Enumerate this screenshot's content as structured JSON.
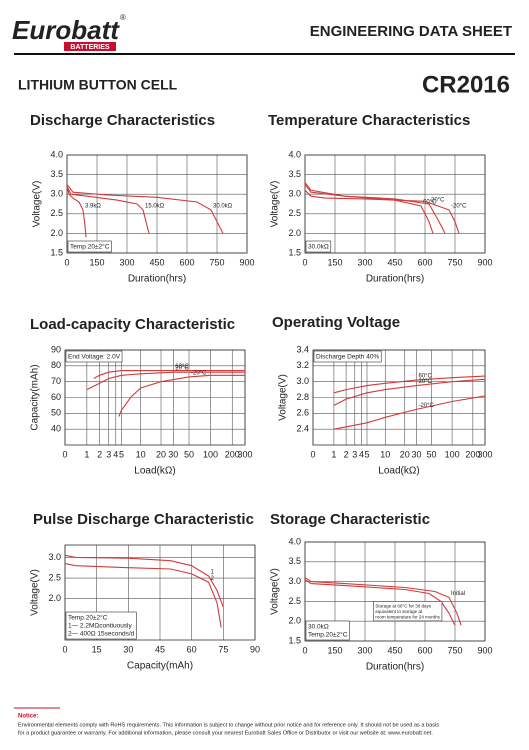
{
  "header": {
    "brand": "Eurobatt",
    "brand_mark": "®",
    "brand_sub": "BATTERIES",
    "doc_title": "ENGINEERING DATA SHEET",
    "product": "LITHIUM BUTTON CELL",
    "model": "CR2016"
  },
  "chart_data": [
    {
      "type": "line",
      "title": "Discharge Characteristics",
      "xlabel": "Duration(hrs)",
      "ylabel": "Voltage(V)",
      "xlim": [
        0,
        900
      ],
      "ylim": [
        1.5,
        4.0
      ],
      "xticks": [
        0,
        150,
        300,
        450,
        600,
        750,
        900
      ],
      "yticks": [
        1.5,
        {
          "value": 2,
          "label": "2.0"
        },
        2.5,
        {
          "value": 3,
          "label": "3.0"
        },
        3.5,
        {
          "value": 4,
          "label": "4.0"
        }
      ],
      "grid": true,
      "notes": [
        [
          "Temp.20±2°C"
        ]
      ],
      "series": [
        {
          "name": "3.9kΩ",
          "color": "#d33a3a",
          "x": [
            0,
            10,
            30,
            60,
            80,
            90,
            95
          ],
          "values": [
            3.2,
            3.0,
            2.9,
            2.8,
            2.6,
            2.2,
            1.9
          ]
        },
        {
          "name": "15.0kΩ",
          "color": "#d33a3a",
          "x": [
            0,
            20,
            100,
            250,
            350,
            380,
            400,
            410
          ],
          "values": [
            3.2,
            3.0,
            2.95,
            2.85,
            2.75,
            2.6,
            2.2,
            2.0
          ]
        },
        {
          "name": "30.0kΩ",
          "color": "#d33a3a",
          "x": [
            0,
            30,
            200,
            450,
            650,
            720,
            760,
            780
          ],
          "values": [
            3.25,
            3.05,
            2.98,
            2.92,
            2.8,
            2.6,
            2.2,
            2.0
          ]
        }
      ]
    },
    {
      "type": "line",
      "title": "Temperature Characteristics",
      "xlabel": "Duration(hrs)",
      "ylabel": "Voltage(V)",
      "xlim": [
        0,
        900
      ],
      "ylim": [
        1.5,
        4.0
      ],
      "xticks": [
        0,
        150,
        300,
        450,
        600,
        750,
        900
      ],
      "yticks": [
        1.5,
        {
          "value": 2,
          "label": "2.0"
        },
        2.5,
        {
          "value": 3,
          "label": "3.0"
        },
        3.5,
        {
          "value": 4,
          "label": "4.0"
        }
      ],
      "grid": true,
      "notes": [
        [
          "30.0kΩ"
        ]
      ],
      "series": [
        {
          "name": "60°C",
          "color": "#d33a3a",
          "x": [
            0,
            30,
            200,
            450,
            580,
            620,
            640
          ],
          "values": [
            3.3,
            3.1,
            2.95,
            2.85,
            2.7,
            2.3,
            2.0
          ]
        },
        {
          "name": "20°C",
          "color": "#d33a3a",
          "x": [
            0,
            30,
            200,
            450,
            620,
            670,
            700
          ],
          "values": [
            3.25,
            3.05,
            2.95,
            2.88,
            2.75,
            2.3,
            2.0
          ]
        },
        {
          "name": "-20°C",
          "color": "#d33a3a",
          "x": [
            0,
            30,
            100,
            300,
            600,
            720,
            750,
            770
          ],
          "values": [
            3.1,
            2.95,
            2.9,
            2.88,
            2.82,
            2.6,
            2.3,
            2.0
          ]
        }
      ]
    },
    {
      "type": "line",
      "title": "Load-capacity Characteristic",
      "xlabel": "Load(kΩ)",
      "ylabel": "Capacity(mAh)",
      "xscale": "log1p",
      "xlim": [
        0,
        300
      ],
      "ylim": [
        30,
        90
      ],
      "xticks": [
        0,
        1,
        2,
        3,
        4,
        5,
        10,
        20,
        30,
        50,
        100,
        200,
        300
      ],
      "yticks": [
        40,
        50,
        60,
        70,
        80,
        90
      ],
      "grid": true,
      "notes": [
        [
          "End Voltage: 2.0V"
        ]
      ],
      "series": [
        {
          "name": "60°C",
          "color": "#d33a3a",
          "x": [
            1.5,
            2,
            3,
            5,
            10,
            30,
            100,
            300
          ],
          "values": [
            72,
            74,
            76,
            77,
            77,
            77,
            77,
            77
          ]
        },
        {
          "name": "20°C",
          "color": "#d33a3a",
          "x": [
            1,
            2,
            3,
            5,
            10,
            30,
            100,
            300
          ],
          "values": [
            65,
            69,
            72,
            74,
            75,
            76,
            76,
            76
          ]
        },
        {
          "name": "-20°C",
          "color": "#d33a3a",
          "x": [
            4.5,
            5,
            7,
            10,
            20,
            50,
            100,
            300
          ],
          "values": [
            48,
            52,
            60,
            66,
            70,
            73,
            74,
            74
          ]
        }
      ]
    },
    {
      "type": "line",
      "title": "Operating Voltage",
      "xlabel": "Load(kΩ)",
      "ylabel": "Voltage(V)",
      "xscale": "log1p",
      "xlim": [
        0,
        300
      ],
      "ylim": [
        2.2,
        3.4
      ],
      "xticks": [
        0,
        1,
        2,
        3,
        4,
        5,
        10,
        20,
        30,
        50,
        100,
        200,
        300
      ],
      "yticks": [
        2.4,
        2.6,
        2.8,
        {
          "value": 3,
          "label": "3.0"
        },
        3.2,
        3.4
      ],
      "grid": true,
      "notes": [
        [
          "Discharge Depth 40%"
        ]
      ],
      "series": [
        {
          "name": "60°C",
          "color": "#d33a3a",
          "x": [
            1,
            2,
            5,
            10,
            30,
            100,
            300
          ],
          "values": [
            2.86,
            2.9,
            2.95,
            2.98,
            3.02,
            3.05,
            3.07
          ]
        },
        {
          "name": "20°C",
          "color": "#d33a3a",
          "x": [
            1,
            2,
            5,
            10,
            30,
            100,
            300
          ],
          "values": [
            2.7,
            2.78,
            2.86,
            2.9,
            2.95,
            3.0,
            3.03
          ]
        },
        {
          "name": "-20°C",
          "color": "#d33a3a",
          "x": [
            1,
            5,
            10,
            30,
            100,
            300
          ],
          "values": [
            2.4,
            2.48,
            2.55,
            2.65,
            2.75,
            2.82
          ]
        }
      ]
    },
    {
      "type": "line",
      "title": "Pulse Discharge Characteristic",
      "xlabel": "Capacity(mAh)",
      "ylabel": "Voltage(V)",
      "xlim": [
        0,
        90
      ],
      "ylim": [
        1.0,
        3.3
      ],
      "xticks": [
        0,
        15,
        30,
        45,
        60,
        75,
        90
      ],
      "yticks": [
        {
          "value": 2,
          "label": "2.0"
        },
        2.5,
        {
          "value": 3,
          "label": "3.0"
        }
      ],
      "grid": true,
      "notes": [
        [
          "Temp.20±2°C",
          "1— 2.2MΩcontiuously",
          "2— 400Ω 15seconds/d"
        ]
      ],
      "series": [
        {
          "name": "1",
          "color": "#d33a3a",
          "x": [
            0,
            5,
            30,
            50,
            60,
            68,
            72,
            75
          ],
          "values": [
            3.05,
            3.0,
            2.98,
            2.92,
            2.8,
            2.55,
            2.2,
            1.8
          ]
        },
        {
          "name": "2",
          "color": "#d33a3a",
          "x": [
            0,
            5,
            30,
            50,
            60,
            68,
            72,
            74
          ],
          "values": [
            2.85,
            2.8,
            2.75,
            2.72,
            2.6,
            2.4,
            1.9,
            1.3
          ]
        }
      ]
    },
    {
      "type": "line",
      "title": "Storage Characteristic",
      "xlabel": "Duration(hrs)",
      "ylabel": "Voltage(V)",
      "xlim": [
        0,
        900
      ],
      "ylim": [
        1.5,
        4.0
      ],
      "xticks": [
        0,
        150,
        300,
        450,
        600,
        750,
        900
      ],
      "yticks": [
        1.5,
        {
          "value": 2,
          "label": "2.0"
        },
        2.5,
        {
          "value": 3,
          "label": "3.0"
        },
        3.5,
        {
          "value": 4,
          "label": "4.0"
        }
      ],
      "grid": true,
      "notes": [
        [
          "30.0kΩ",
          "Temp.20±2°C"
        ],
        [
          "Storage at 60°C for 30 days",
          "equivalent to storage at",
          "room temperature for 24 months"
        ]
      ],
      "series": [
        {
          "name": "Initial",
          "color": "#d33a3a",
          "x": [
            0,
            30,
            200,
            500,
            650,
            720,
            760,
            780
          ],
          "values": [
            3.1,
            3.0,
            2.95,
            2.85,
            2.75,
            2.6,
            2.2,
            1.9
          ]
        },
        {
          "color": "#d33a3a",
          "x": [
            0,
            30,
            200,
            500,
            620,
            680,
            720,
            750
          ],
          "values": [
            3.05,
            2.95,
            2.9,
            2.8,
            2.7,
            2.5,
            2.2,
            1.9
          ]
        }
      ]
    }
  ],
  "footer": {
    "notice_title": "Notice:",
    "lines": [
      "Environmental elements comply with RoHS requirements. This information is subject to change without prior notice and for reference only. It should not be used as a basis",
      "for a product guarantee or warranty. For additional information, please consult your nearest Eurobatt Sales Office or Distributor or visit our website at: www.eurobatt.net."
    ]
  }
}
